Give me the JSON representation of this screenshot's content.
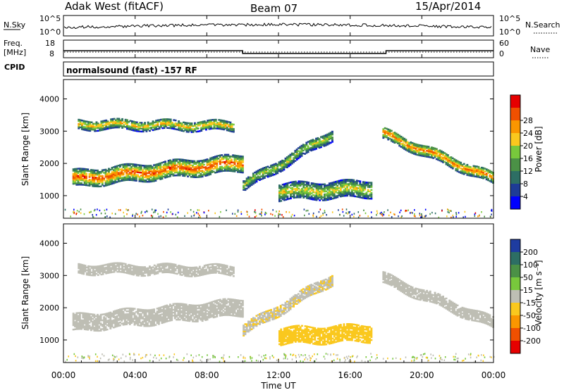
{
  "header": {
    "station": "Adak West (fitACF)",
    "beam": "Beam 07",
    "date": "15/Apr/2014"
  },
  "panels": {
    "nsky": {
      "left_label": "N.Sky",
      "right_label": "N.Search",
      "left_ticks": [
        "10^5",
        "10^0"
      ],
      "right_ticks": [
        "10^5",
        "10^0"
      ]
    },
    "freq": {
      "left_label_1": "Freq.",
      "left_label_2": "[MHz]",
      "right_label": "Nave",
      "left_ticks": [
        "18",
        "8"
      ],
      "right_ticks": [
        "60",
        "0"
      ]
    },
    "cpid": {
      "label": "CPID",
      "text": "normalsound (fast) -157 RF"
    }
  },
  "chart_data": [
    {
      "type": "heatmap",
      "name": "power",
      "ylabel": "Slant Range [km]",
      "y_ticks": [
        "1000",
        "2000",
        "3000",
        "4000"
      ],
      "ylim": [
        300,
        4600
      ],
      "xlim": [
        0,
        24
      ],
      "colorbar": {
        "label": "Power [dB]",
        "ticks": [
          "4",
          "8",
          "12",
          "16",
          "20",
          "24",
          "28"
        ],
        "range": [
          0,
          32
        ],
        "colors": [
          "#0000ff",
          "#1e3c96",
          "#2d6e64",
          "#4b9146",
          "#78c83c",
          "#fac81e",
          "#fa9600",
          "#f05000",
          "#e60000"
        ]
      },
      "echo_bands": [
        {
          "from_h": 0.5,
          "to_h": 10,
          "range_start": [
            1500,
            2000
          ],
          "width_km": 500,
          "peak_db": 28
        },
        {
          "from_h": 0.8,
          "to_h": 9.5,
          "range_start": [
            3200,
            3150
          ],
          "width_km": 300,
          "peak_db": 22
        },
        {
          "from_h": 10,
          "to_h": 15,
          "range_start": [
            1300,
            2900
          ],
          "width_km": 350,
          "peak_db": 18
        },
        {
          "from_h": 12,
          "to_h": 17.2,
          "range_start": [
            1100,
            1200
          ],
          "width_km": 500,
          "peak_db": 20
        },
        {
          "from_h": 17.8,
          "to_h": 24,
          "range_start": [
            2900,
            1500
          ],
          "width_km": 350,
          "peak_db": 26
        }
      ]
    },
    {
      "type": "heatmap",
      "name": "velocity",
      "ylabel": "Slant Range [km]",
      "y_ticks": [
        "1000",
        "2000",
        "3000",
        "4000"
      ],
      "ylim": [
        300,
        4600
      ],
      "xlim": [
        0,
        24
      ],
      "colorbar": {
        "label": "Velocity [m s⁻¹]",
        "ticks": [
          "200",
          "100",
          "50",
          "15",
          "-15",
          "-50",
          "-100",
          "-200"
        ],
        "range": [
          -250,
          250
        ],
        "colors": [
          "#1e3ca0",
          "#2d6e64",
          "#4b9146",
          "#78c83c",
          "#bebeb4",
          "#fac81e",
          "#fa9600",
          "#f05000",
          "#e60000"
        ]
      },
      "echo_bands": [
        {
          "from_h": 0.5,
          "to_h": 10,
          "range_start": [
            1500,
            2000
          ],
          "width_km": 500,
          "velocity": 0
        },
        {
          "from_h": 0.8,
          "to_h": 9.5,
          "range_start": [
            3200,
            3150
          ],
          "width_km": 300,
          "velocity": 0
        },
        {
          "from_h": 10,
          "to_h": 15,
          "range_start": [
            1300,
            2900
          ],
          "width_km": 350,
          "velocity": -20
        },
        {
          "from_h": 12,
          "to_h": 17.2,
          "range_start": [
            1100,
            1200
          ],
          "width_km": 500,
          "velocity": -60
        },
        {
          "from_h": 17.8,
          "to_h": 24,
          "range_start": [
            2900,
            1500
          ],
          "width_km": 350,
          "velocity": 0
        }
      ]
    }
  ],
  "x_axis": {
    "ticks": [
      "00:00",
      "04:00",
      "08:00",
      "12:00",
      "16:00",
      "20:00",
      "00:00"
    ],
    "label": "Time UT"
  },
  "frequency_trace": {
    "segments": [
      [
        0,
        10,
        12
      ],
      [
        10,
        18,
        10
      ],
      [
        18,
        24,
        12
      ]
    ]
  }
}
